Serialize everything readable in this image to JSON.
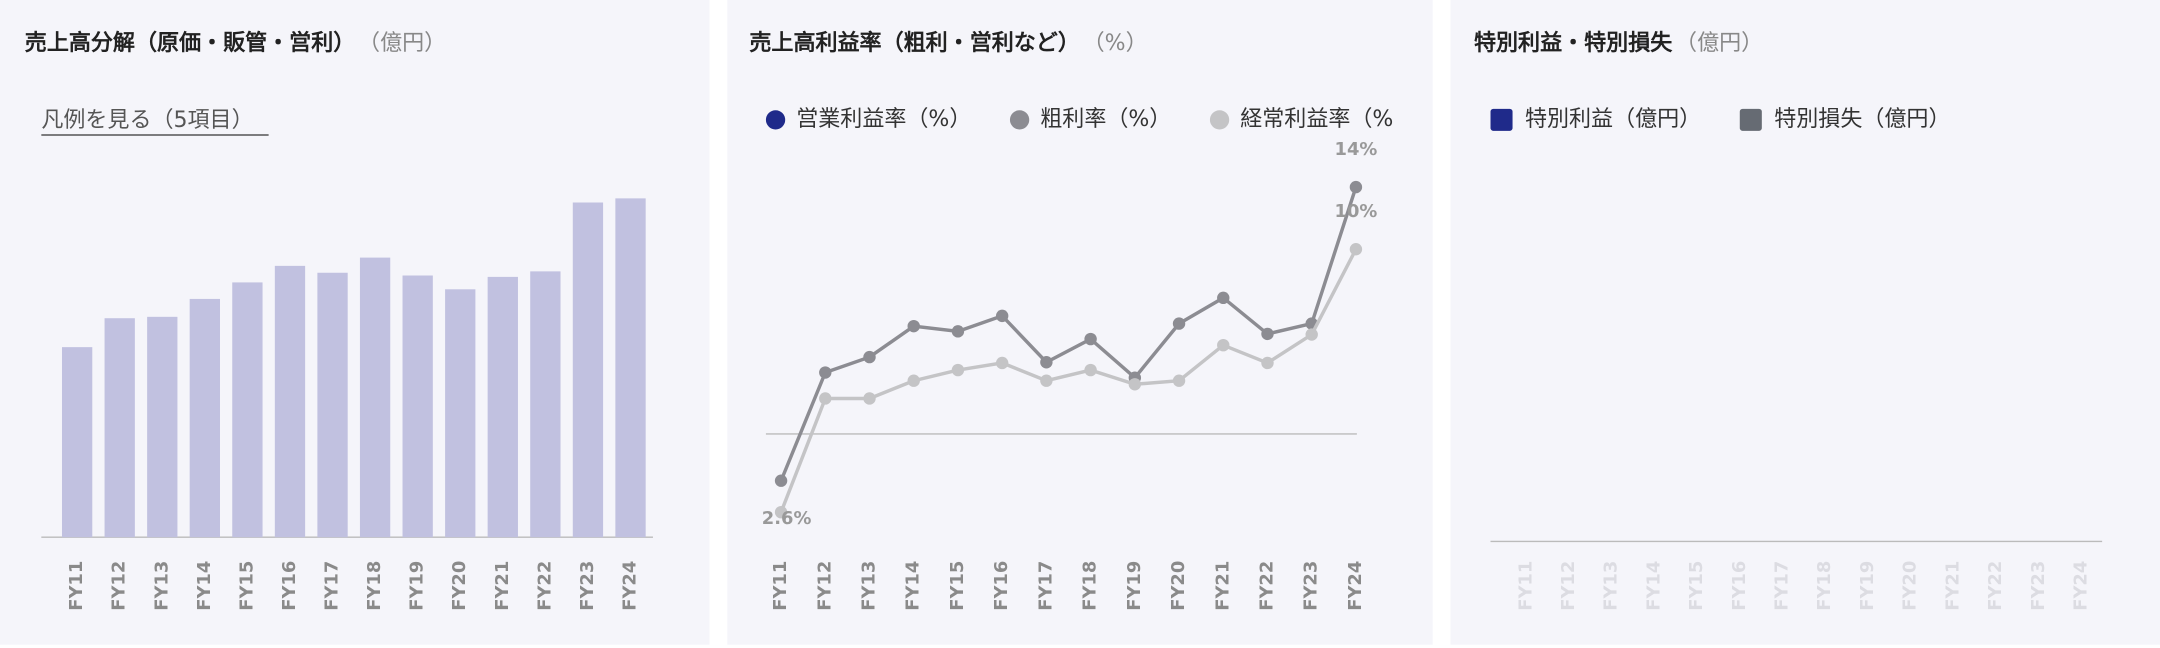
{
  "chart_data": [
    {
      "type": "bar",
      "title": "売上高分解（原価・販管・営利）",
      "unit": "（億円）",
      "legend_link": "凡例を見る（5項目）",
      "categories": [
        "FY11",
        "FY12",
        "FY13",
        "FY14",
        "FY15",
        "FY16",
        "FY17",
        "FY18",
        "FY19",
        "FY20",
        "FY21",
        "FY22",
        "FY23",
        "FY24"
      ],
      "values": [
        138,
        159,
        160,
        173,
        185,
        197,
        192,
        203,
        190,
        180,
        189,
        193,
        243,
        246
      ],
      "color": "#c1c1e0",
      "ylim": [
        0,
        260
      ]
    },
    {
      "type": "line",
      "title": "売上高利益率（粗利・営利など）",
      "unit": "（%）",
      "categories": [
        "FY11",
        "FY12",
        "FY13",
        "FY14",
        "FY15",
        "FY16",
        "FY17",
        "FY18",
        "FY19",
        "FY20",
        "FY21",
        "FY22",
        "FY23",
        "FY24"
      ],
      "ylim": [
        0,
        16
      ],
      "y2lim": [
        1.6,
        13.2
      ],
      "series": [
        {
          "name": "営業利益率（%）",
          "color": "#1f2a8a",
          "values": [
            null,
            null,
            null,
            null,
            null,
            null,
            null,
            null,
            null,
            null,
            null,
            null,
            null,
            null
          ]
        },
        {
          "name": "粗利率（%）",
          "color": "#8c8c92",
          "values": [
            2.6,
            6.8,
            7.4,
            8.6,
            8.4,
            9.0,
            7.2,
            8.1,
            6.6,
            8.7,
            9.7,
            8.3,
            8.7,
            14.0
          ],
          "value_labels": [
            null,
            null,
            null,
            null,
            null,
            null,
            null,
            null,
            null,
            null,
            null,
            null,
            null,
            "14%"
          ]
        },
        {
          "name": "経常利益率（%）",
          "color": "#c4c4c6",
          "axis": "y2",
          "values": [
            2.6,
            5.8,
            5.8,
            6.3,
            6.6,
            6.8,
            6.3,
            6.6,
            6.2,
            6.3,
            7.3,
            6.8,
            7.6,
            10.0
          ],
          "value_labels": [
            "2.6%",
            null,
            null,
            null,
            null,
            null,
            null,
            null,
            null,
            null,
            null,
            null,
            null,
            "10%"
          ]
        }
      ]
    },
    {
      "type": "bar",
      "title": "特別利益・特別損失",
      "unit": "（億円）",
      "categories": [
        "FY11",
        "FY12",
        "FY13",
        "FY14",
        "FY15",
        "FY16",
        "FY17",
        "FY18",
        "FY19",
        "FY20",
        "FY21",
        "FY22",
        "FY23",
        "FY24"
      ],
      "series": [
        {
          "name": "特別利益（億円）",
          "color": "#1f2a8a",
          "values": [
            null,
            null,
            null,
            null,
            null,
            null,
            null,
            null,
            null,
            null,
            null,
            null,
            null,
            null
          ]
        },
        {
          "name": "特別損失（億円）",
          "color": "#666b73",
          "values": [
            null,
            null,
            null,
            null,
            null,
            null,
            null,
            null,
            null,
            null,
            null,
            null,
            null,
            null
          ]
        }
      ]
    }
  ]
}
